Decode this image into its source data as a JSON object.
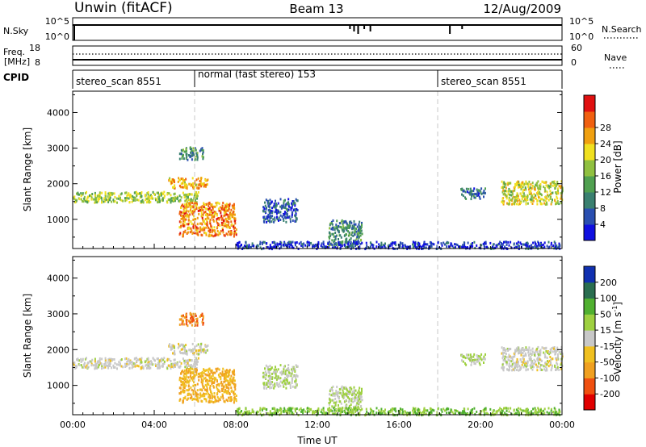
{
  "header": {
    "station": "Unwin (fitACF)",
    "beam": "Beam 13",
    "date": "12/Aug/2009"
  },
  "strips": {
    "nsky_label": "N.Sky",
    "nsky_ticks": [
      "10^5",
      "10^0"
    ],
    "nsearch_label": "N.Search",
    "freq_label": "Freq.",
    "freq_unit": "[MHz]",
    "freq_ticks": [
      "18",
      "8"
    ],
    "nave_label": "Nave",
    "nave_ticks": [
      "60",
      "0"
    ],
    "cpid_label": "CPID",
    "cpid_segments": [
      {
        "label": "stereo_scan 8551",
        "start_hour": 0
      },
      {
        "label": "normal (fast stereo) 153",
        "start_hour": 6
      },
      {
        "label": "stereo_scan 8551",
        "start_hour": 18
      }
    ]
  },
  "power_scale": {
    "label": "Power [dB]",
    "ticks": [
      "4",
      "8",
      "12",
      "16",
      "20",
      "24",
      "28"
    ],
    "colors": [
      "#1010e0",
      "#2a4fb0",
      "#3a8070",
      "#50a050",
      "#90c040",
      "#f0e020",
      "#f0a010",
      "#f06010",
      "#e01010"
    ]
  },
  "velocity_scale": {
    "label": "Velocity [m s",
    "label_sup": "-1",
    "label_end": "]",
    "ticks": [
      "-200",
      "-100",
      "-50",
      "-15",
      "15",
      "50",
      "100",
      "200"
    ],
    "colors": [
      "#e00000",
      "#f05010",
      "#f0a020",
      "#f0c020",
      "#c8c8c8",
      "#9ed040",
      "#50b030",
      "#2a6e50",
      "#1030b0"
    ]
  },
  "chart_data": {
    "type": "heatmap",
    "xlabel": "Time UT",
    "ylabel": "Slant Range [km]",
    "x_ticks": [
      "00:00",
      "04:00",
      "08:00",
      "12:00",
      "16:00",
      "20:00",
      "00:00"
    ],
    "x_tick_hours": [
      0,
      4,
      8,
      12,
      16,
      20,
      24
    ],
    "xlim_hours": [
      0,
      24
    ],
    "y_ticks": [
      1000,
      2000,
      3000,
      4000
    ],
    "ylim_km": [
      180,
      4600
    ],
    "mode_change_hours": [
      6,
      18
    ],
    "echo_regions": [
      {
        "t0": 0.0,
        "t1": 6.2,
        "r0": 1500,
        "r1": 1800,
        "power": 16,
        "velocity": 0
      },
      {
        "t0": 4.6,
        "t1": 6.6,
        "r0": 1900,
        "r1": 2200,
        "power": 22,
        "velocity": 0
      },
      {
        "t0": 5.2,
        "t1": 6.4,
        "r0": 2700,
        "r1": 3050,
        "power": 10,
        "velocity": -100
      },
      {
        "t0": 5.2,
        "t1": 8.0,
        "r0": 550,
        "r1": 1500,
        "power": 24,
        "velocity": -50
      },
      {
        "t0": 9.3,
        "t1": 11.0,
        "r0": 950,
        "r1": 1600,
        "power": 6,
        "velocity": 15
      },
      {
        "t0": 12.5,
        "t1": 14.2,
        "r0": 300,
        "r1": 1000,
        "power": 10,
        "velocity": 15
      },
      {
        "t0": 8.0,
        "t1": 24.0,
        "r0": 200,
        "r1": 400,
        "power": 4,
        "velocity": 50
      },
      {
        "t0": 19.0,
        "t1": 20.2,
        "r0": 1600,
        "r1": 1900,
        "power": 8,
        "velocity": 15
      },
      {
        "t0": 21.0,
        "t1": 24.0,
        "r0": 1450,
        "r1": 2100,
        "power": 18,
        "velocity": 0
      }
    ]
  }
}
